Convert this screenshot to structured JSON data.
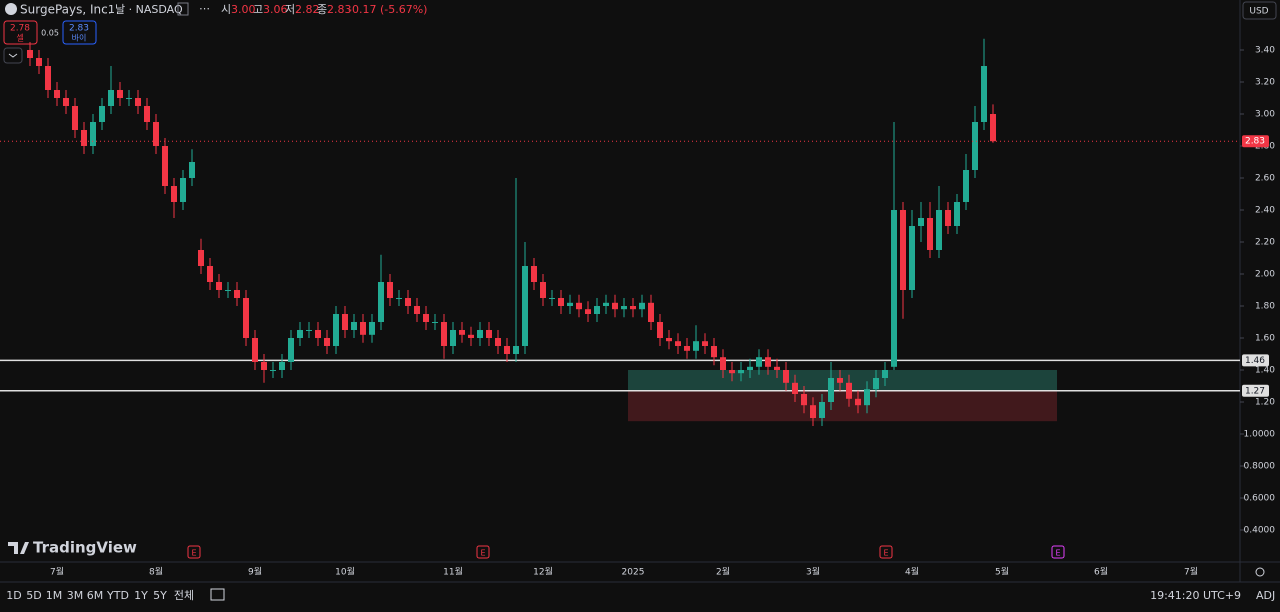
{
  "header": {
    "symbol": "SurgePays, Inc.",
    "interval": "· 1날 · NASDAQ",
    "ohlc": [
      {
        "label": "시",
        "value": "3.00"
      },
      {
        "label": "고",
        "value": "3.06"
      },
      {
        "label": "저",
        "value": "2.82"
      },
      {
        "label": "종",
        "value": "2.83"
      }
    ],
    "change": "-0.17 (-5.67%)",
    "currency": "USD"
  },
  "trade": {
    "sell_price": "2.78",
    "sell_label": "셀",
    "spread": "0.05",
    "buy_price": "2.83",
    "buy_label": "바이"
  },
  "logo": "TradingView",
  "toolbar": {
    "ranges": [
      "1D",
      "5D",
      "1M",
      "3M",
      "6M",
      "YTD",
      "1Y",
      "5Y",
      "전체"
    ],
    "clock": "19:41:20 UTC+9",
    "adj": "ADJ"
  },
  "events": [
    "E",
    "E",
    "E",
    "E"
  ],
  "chart_data": {
    "type": "candlestick",
    "categories": [
      null,
      null,
      null,
      "7월",
      null,
      null,
      null,
      null,
      null,
      null,
      null,
      null,
      null,
      null,
      "8월",
      null,
      null,
      null,
      null,
      null,
      null,
      null,
      null,
      null,
      null,
      "9월",
      null,
      null,
      null,
      null,
      null,
      null,
      null,
      null,
      null,
      "10월",
      null,
      null,
      null,
      null,
      null,
      null,
      null,
      null,
      null,
      null,
      null,
      "11월",
      null,
      null,
      null,
      null,
      null,
      null,
      null,
      null,
      null,
      "12월",
      null,
      null,
      null,
      null,
      null,
      null,
      null,
      null,
      null,
      "2025",
      null,
      null,
      null,
      null,
      null,
      null,
      null,
      null,
      null,
      "2월",
      null,
      null,
      null,
      null,
      null,
      null,
      null,
      null,
      null,
      "3월",
      null,
      null,
      null,
      null,
      null,
      null,
      null,
      null,
      null,
      null,
      "4월",
      null,
      null,
      null,
      null,
      null,
      null,
      null,
      null,
      null,
      "5월",
      null,
      null,
      null,
      null,
      null,
      null,
      null,
      null,
      null,
      null,
      "6월",
      null,
      null,
      null,
      null,
      null,
      null,
      null,
      null,
      null,
      "7월",
      null,
      null,
      null,
      null
    ],
    "open": [
      3.4,
      3.35,
      3.3,
      3.15,
      3.1,
      3.05,
      2.9,
      2.8,
      2.95,
      3.05,
      3.15,
      3.1,
      3.1,
      3.05,
      2.95,
      2.8,
      2.55,
      2.45,
      2.6,
      2.15,
      2.05,
      1.95,
      1.9,
      1.9,
      1.85,
      1.6,
      1.45,
      1.4,
      1.4,
      1.45,
      1.6,
      1.65,
      1.65,
      1.6,
      1.55,
      1.75,
      1.65,
      1.7,
      1.62,
      1.7,
      1.95,
      1.85,
      1.85,
      1.8,
      1.75,
      1.7,
      1.7,
      1.55,
      1.65,
      1.62,
      1.6,
      1.65,
      1.6,
      1.55,
      1.5,
      1.55,
      2.05,
      1.95,
      1.85,
      1.85,
      1.8,
      1.82,
      1.78,
      1.75,
      1.8,
      1.82,
      1.78,
      1.8,
      1.78,
      1.82,
      1.7,
      1.6,
      1.58,
      1.55,
      1.52,
      1.58,
      1.55,
      1.48,
      1.4,
      1.38,
      1.4,
      1.42,
      1.48,
      1.42,
      1.4,
      1.32,
      1.25,
      1.18,
      1.1,
      1.2,
      1.35,
      1.32,
      1.22,
      1.18,
      1.28,
      1.35,
      1.42,
      2.4,
      1.9,
      2.3,
      2.35,
      2.15,
      2.4,
      2.3,
      2.45,
      2.65,
      2.95,
      3.0,
      null,
      null,
      null,
      null,
      null,
      null,
      null,
      null,
      null,
      null,
      null,
      null,
      null,
      null,
      null,
      null,
      null,
      null,
      null,
      null,
      null,
      null,
      null,
      null,
      null,
      null
    ],
    "high": [
      3.45,
      3.4,
      3.35,
      3.2,
      3.15,
      3.1,
      2.95,
      3.0,
      3.1,
      3.3,
      3.2,
      3.15,
      3.15,
      3.1,
      3.0,
      2.85,
      2.6,
      2.65,
      2.78,
      2.22,
      2.1,
      2.0,
      1.95,
      1.95,
      1.9,
      1.65,
      1.5,
      1.45,
      1.5,
      1.65,
      1.7,
      1.7,
      1.7,
      1.65,
      1.8,
      1.8,
      1.75,
      1.75,
      1.75,
      2.12,
      2.0,
      1.9,
      1.9,
      1.85,
      1.8,
      1.75,
      1.75,
      1.7,
      1.7,
      1.67,
      1.7,
      1.7,
      1.65,
      1.6,
      2.6,
      2.2,
      2.1,
      2.0,
      1.9,
      1.9,
      1.87,
      1.87,
      1.83,
      1.85,
      1.87,
      1.87,
      1.85,
      1.85,
      1.87,
      1.87,
      1.75,
      1.65,
      1.63,
      1.6,
      1.68,
      1.63,
      1.6,
      1.53,
      1.45,
      1.45,
      1.47,
      1.53,
      1.53,
      1.47,
      1.45,
      1.37,
      1.3,
      1.23,
      1.25,
      1.45,
      1.4,
      1.37,
      1.27,
      1.33,
      1.4,
      1.45,
      2.95,
      2.45,
      2.4,
      2.45,
      2.45,
      2.55,
      2.45,
      2.5,
      2.75,
      3.05,
      3.47,
      3.06,
      null,
      null,
      null,
      null,
      null,
      null,
      null,
      null,
      null,
      null,
      null,
      null,
      null,
      null,
      null,
      null,
      null,
      null,
      null,
      null,
      null,
      null,
      null,
      null,
      null,
      null
    ],
    "low": [
      3.3,
      3.25,
      3.1,
      3.05,
      3.0,
      2.85,
      2.75,
      2.75,
      2.9,
      3.0,
      3.05,
      3.05,
      3.0,
      2.9,
      2.75,
      2.5,
      2.35,
      2.4,
      2.55,
      2.0,
      1.9,
      1.85,
      1.85,
      1.8,
      1.55,
      1.4,
      1.32,
      1.35,
      1.35,
      1.4,
      1.55,
      1.6,
      1.55,
      1.5,
      1.5,
      1.6,
      1.6,
      1.57,
      1.57,
      1.65,
      1.8,
      1.8,
      1.75,
      1.7,
      1.65,
      1.65,
      1.47,
      1.5,
      1.57,
      1.55,
      1.55,
      1.55,
      1.5,
      1.45,
      1.45,
      1.5,
      1.9,
      1.8,
      1.8,
      1.75,
      1.75,
      1.73,
      1.7,
      1.7,
      1.75,
      1.73,
      1.73,
      1.73,
      1.73,
      1.65,
      1.55,
      1.53,
      1.5,
      1.47,
      1.47,
      1.5,
      1.43,
      1.35,
      1.33,
      1.33,
      1.35,
      1.37,
      1.37,
      1.35,
      1.27,
      1.2,
      1.13,
      1.05,
      1.05,
      1.15,
      1.27,
      1.17,
      1.13,
      1.13,
      1.23,
      1.3,
      1.4,
      1.72,
      1.85,
      2.2,
      2.1,
      2.1,
      2.25,
      2.25,
      2.4,
      2.6,
      2.9,
      2.82,
      null,
      null,
      null,
      null,
      null,
      null,
      null,
      null,
      null,
      null,
      null,
      null,
      null,
      null,
      null,
      null,
      null,
      null,
      null,
      null,
      null,
      null,
      null,
      null,
      null,
      null
    ],
    "close": [
      3.35,
      3.3,
      3.15,
      3.1,
      3.05,
      2.9,
      2.8,
      2.95,
      3.05,
      3.15,
      3.1,
      3.1,
      3.05,
      2.95,
      2.8,
      2.55,
      2.45,
      2.6,
      2.7,
      2.05,
      1.95,
      1.9,
      1.9,
      1.85,
      1.6,
      1.45,
      1.4,
      1.4,
      1.45,
      1.6,
      1.65,
      1.65,
      1.6,
      1.55,
      1.75,
      1.65,
      1.7,
      1.62,
      1.7,
      1.95,
      1.85,
      1.85,
      1.8,
      1.75,
      1.7,
      1.7,
      1.55,
      1.65,
      1.62,
      1.6,
      1.65,
      1.6,
      1.55,
      1.5,
      1.55,
      2.05,
      1.95,
      1.85,
      1.85,
      1.8,
      1.82,
      1.78,
      1.75,
      1.8,
      1.82,
      1.78,
      1.8,
      1.78,
      1.82,
      1.7,
      1.6,
      1.58,
      1.55,
      1.52,
      1.58,
      1.55,
      1.48,
      1.4,
      1.38,
      1.4,
      1.42,
      1.48,
      1.42,
      1.4,
      1.32,
      1.25,
      1.18,
      1.1,
      1.2,
      1.35,
      1.32,
      1.22,
      1.18,
      1.28,
      1.35,
      1.4,
      2.4,
      1.9,
      2.3,
      2.35,
      2.15,
      2.4,
      2.3,
      2.45,
      2.65,
      2.95,
      3.3,
      2.83,
      null,
      null,
      null,
      null,
      null,
      null,
      null,
      null,
      null,
      null,
      null,
      null,
      null,
      null,
      null,
      null,
      null,
      null,
      null,
      null,
      null,
      null,
      null,
      null,
      null,
      null
    ],
    "up_color": "#22ab94",
    "down_color": "#f23645",
    "ylim": [
      0.2,
      3.7125
    ],
    "yticks": [
      {
        "value": 3.4,
        "label": "3.40"
      },
      {
        "value": 3.2,
        "label": "3.20"
      },
      {
        "value": 3.0,
        "label": "3.00"
      },
      {
        "value": 2.8,
        "label": "2.80"
      },
      {
        "value": 2.6,
        "label": "2.60"
      },
      {
        "value": 2.4,
        "label": "2.40"
      },
      {
        "value": 2.2,
        "label": "2.20"
      },
      {
        "value": 2.0,
        "label": "2.00"
      },
      {
        "value": 1.8,
        "label": "1.80"
      },
      {
        "value": 1.6,
        "label": "1.60"
      },
      {
        "value": 1.4,
        "label": "1.40"
      },
      {
        "value": 1.2,
        "label": "1.20"
      },
      {
        "value": 1.0,
        "label": "1.0000"
      },
      {
        "value": 0.8,
        "label": "0.8000"
      },
      {
        "value": 0.6,
        "label": "0.6000"
      },
      {
        "value": 0.4,
        "label": "0.4000"
      }
    ],
    "grid": false,
    "hlines": [
      1.46,
      1.27
    ],
    "last_price": 2.83,
    "zones": [
      {
        "top": 1.4,
        "bottom": 1.27,
        "color": "#1e4d44"
      },
      {
        "top": 1.27,
        "bottom": 1.08,
        "color": "#4a1b1f"
      }
    ]
  }
}
